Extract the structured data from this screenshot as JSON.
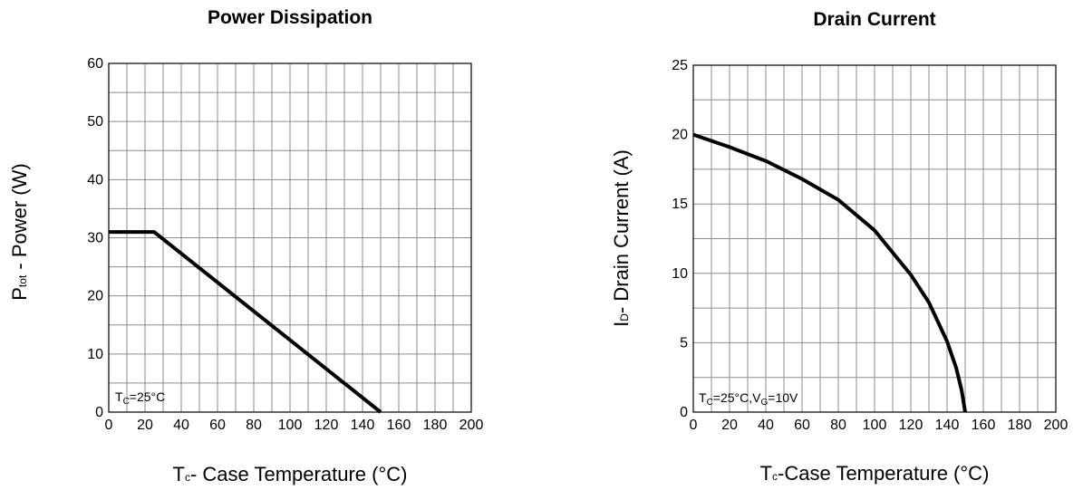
{
  "chart_data": [
    {
      "type": "line",
      "title": "Power Dissipation",
      "xlabel_main": "T",
      "xlabel_sub": "c",
      "xlabel_rest": "- Case Temperature (°C)",
      "ylabel_main": "P",
      "ylabel_sub": "tot",
      "ylabel_rest": " - Power (W)",
      "xlim": [
        0,
        200
      ],
      "ylim": [
        0,
        60
      ],
      "xticks": [
        0,
        20,
        40,
        60,
        80,
        100,
        120,
        140,
        160,
        180,
        200
      ],
      "yticks": [
        0,
        10,
        20,
        30,
        40,
        50,
        60
      ],
      "x_grid_step": 10,
      "y_grid_step": 5,
      "grid": true,
      "annotation": {
        "parts": [
          {
            "t": "T",
            "sub": false
          },
          {
            "t": "C",
            "sub": true
          },
          {
            "t": "=25°C",
            "sub": false
          }
        ]
      },
      "series": [
        {
          "x": [
            0,
            25,
            150
          ],
          "y": [
            31,
            31,
            0
          ]
        }
      ]
    },
    {
      "type": "line",
      "title": "Drain Current",
      "xlabel_main": "T",
      "xlabel_sub": "c",
      "xlabel_rest": "-Case Temperature (°C)",
      "ylabel_main": "I",
      "ylabel_sub": "D",
      "ylabel_rest": "- Drain Current (A)",
      "xlim": [
        0,
        200
      ],
      "ylim": [
        0,
        25
      ],
      "xticks": [
        0,
        20,
        40,
        60,
        80,
        100,
        120,
        140,
        160,
        180,
        200
      ],
      "yticks": [
        0,
        5,
        10,
        15,
        20,
        25
      ],
      "x_grid_step": 10,
      "y_grid_step": 2.5,
      "grid": true,
      "annotation": {
        "parts": [
          {
            "t": "T",
            "sub": false
          },
          {
            "t": "C",
            "sub": true
          },
          {
            "t": "=25°C,V",
            "sub": false
          },
          {
            "t": "G",
            "sub": true
          },
          {
            "t": "=10V",
            "sub": false
          }
        ]
      },
      "series": [
        {
          "x": [
            0,
            20,
            40,
            60,
            80,
            100,
            120,
            130,
            140,
            145,
            148,
            150
          ],
          "y": [
            20,
            19.1,
            18.1,
            16.8,
            15.3,
            13.1,
            9.9,
            7.9,
            5.1,
            3.2,
            1.6,
            0
          ]
        }
      ]
    }
  ]
}
